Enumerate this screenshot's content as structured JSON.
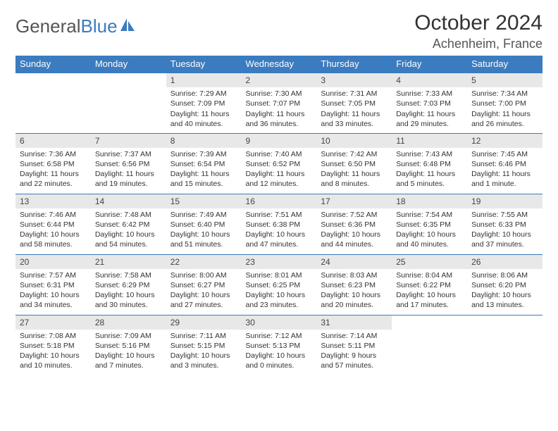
{
  "logo": {
    "part1": "General",
    "part2": "Blue"
  },
  "title": "October 2024",
  "location": "Achenheim, France",
  "colors": {
    "header_bg": "#3b7bbf",
    "header_text": "#ffffff",
    "daynum_bg": "#e8e8e8",
    "border": "#3b7bbf",
    "text": "#333333",
    "background": "#ffffff"
  },
  "fonts": {
    "title_size": 30,
    "location_size": 18,
    "dayheader_size": 13,
    "cell_size": 10.5
  },
  "day_headers": [
    "Sunday",
    "Monday",
    "Tuesday",
    "Wednesday",
    "Thursday",
    "Friday",
    "Saturday"
  ],
  "weeks": [
    [
      {
        "n": "",
        "sr": "",
        "ss": "",
        "dl": ""
      },
      {
        "n": "",
        "sr": "",
        "ss": "",
        "dl": ""
      },
      {
        "n": "1",
        "sr": "Sunrise: 7:29 AM",
        "ss": "Sunset: 7:09 PM",
        "dl": "Daylight: 11 hours and 40 minutes."
      },
      {
        "n": "2",
        "sr": "Sunrise: 7:30 AM",
        "ss": "Sunset: 7:07 PM",
        "dl": "Daylight: 11 hours and 36 minutes."
      },
      {
        "n": "3",
        "sr": "Sunrise: 7:31 AM",
        "ss": "Sunset: 7:05 PM",
        "dl": "Daylight: 11 hours and 33 minutes."
      },
      {
        "n": "4",
        "sr": "Sunrise: 7:33 AM",
        "ss": "Sunset: 7:03 PM",
        "dl": "Daylight: 11 hours and 29 minutes."
      },
      {
        "n": "5",
        "sr": "Sunrise: 7:34 AM",
        "ss": "Sunset: 7:00 PM",
        "dl": "Daylight: 11 hours and 26 minutes."
      }
    ],
    [
      {
        "n": "6",
        "sr": "Sunrise: 7:36 AM",
        "ss": "Sunset: 6:58 PM",
        "dl": "Daylight: 11 hours and 22 minutes."
      },
      {
        "n": "7",
        "sr": "Sunrise: 7:37 AM",
        "ss": "Sunset: 6:56 PM",
        "dl": "Daylight: 11 hours and 19 minutes."
      },
      {
        "n": "8",
        "sr": "Sunrise: 7:39 AM",
        "ss": "Sunset: 6:54 PM",
        "dl": "Daylight: 11 hours and 15 minutes."
      },
      {
        "n": "9",
        "sr": "Sunrise: 7:40 AM",
        "ss": "Sunset: 6:52 PM",
        "dl": "Daylight: 11 hours and 12 minutes."
      },
      {
        "n": "10",
        "sr": "Sunrise: 7:42 AM",
        "ss": "Sunset: 6:50 PM",
        "dl": "Daylight: 11 hours and 8 minutes."
      },
      {
        "n": "11",
        "sr": "Sunrise: 7:43 AM",
        "ss": "Sunset: 6:48 PM",
        "dl": "Daylight: 11 hours and 5 minutes."
      },
      {
        "n": "12",
        "sr": "Sunrise: 7:45 AM",
        "ss": "Sunset: 6:46 PM",
        "dl": "Daylight: 11 hours and 1 minute."
      }
    ],
    [
      {
        "n": "13",
        "sr": "Sunrise: 7:46 AM",
        "ss": "Sunset: 6:44 PM",
        "dl": "Daylight: 10 hours and 58 minutes."
      },
      {
        "n": "14",
        "sr": "Sunrise: 7:48 AM",
        "ss": "Sunset: 6:42 PM",
        "dl": "Daylight: 10 hours and 54 minutes."
      },
      {
        "n": "15",
        "sr": "Sunrise: 7:49 AM",
        "ss": "Sunset: 6:40 PM",
        "dl": "Daylight: 10 hours and 51 minutes."
      },
      {
        "n": "16",
        "sr": "Sunrise: 7:51 AM",
        "ss": "Sunset: 6:38 PM",
        "dl": "Daylight: 10 hours and 47 minutes."
      },
      {
        "n": "17",
        "sr": "Sunrise: 7:52 AM",
        "ss": "Sunset: 6:36 PM",
        "dl": "Daylight: 10 hours and 44 minutes."
      },
      {
        "n": "18",
        "sr": "Sunrise: 7:54 AM",
        "ss": "Sunset: 6:35 PM",
        "dl": "Daylight: 10 hours and 40 minutes."
      },
      {
        "n": "19",
        "sr": "Sunrise: 7:55 AM",
        "ss": "Sunset: 6:33 PM",
        "dl": "Daylight: 10 hours and 37 minutes."
      }
    ],
    [
      {
        "n": "20",
        "sr": "Sunrise: 7:57 AM",
        "ss": "Sunset: 6:31 PM",
        "dl": "Daylight: 10 hours and 34 minutes."
      },
      {
        "n": "21",
        "sr": "Sunrise: 7:58 AM",
        "ss": "Sunset: 6:29 PM",
        "dl": "Daylight: 10 hours and 30 minutes."
      },
      {
        "n": "22",
        "sr": "Sunrise: 8:00 AM",
        "ss": "Sunset: 6:27 PM",
        "dl": "Daylight: 10 hours and 27 minutes."
      },
      {
        "n": "23",
        "sr": "Sunrise: 8:01 AM",
        "ss": "Sunset: 6:25 PM",
        "dl": "Daylight: 10 hours and 23 minutes."
      },
      {
        "n": "24",
        "sr": "Sunrise: 8:03 AM",
        "ss": "Sunset: 6:23 PM",
        "dl": "Daylight: 10 hours and 20 minutes."
      },
      {
        "n": "25",
        "sr": "Sunrise: 8:04 AM",
        "ss": "Sunset: 6:22 PM",
        "dl": "Daylight: 10 hours and 17 minutes."
      },
      {
        "n": "26",
        "sr": "Sunrise: 8:06 AM",
        "ss": "Sunset: 6:20 PM",
        "dl": "Daylight: 10 hours and 13 minutes."
      }
    ],
    [
      {
        "n": "27",
        "sr": "Sunrise: 7:08 AM",
        "ss": "Sunset: 5:18 PM",
        "dl": "Daylight: 10 hours and 10 minutes."
      },
      {
        "n": "28",
        "sr": "Sunrise: 7:09 AM",
        "ss": "Sunset: 5:16 PM",
        "dl": "Daylight: 10 hours and 7 minutes."
      },
      {
        "n": "29",
        "sr": "Sunrise: 7:11 AM",
        "ss": "Sunset: 5:15 PM",
        "dl": "Daylight: 10 hours and 3 minutes."
      },
      {
        "n": "30",
        "sr": "Sunrise: 7:12 AM",
        "ss": "Sunset: 5:13 PM",
        "dl": "Daylight: 10 hours and 0 minutes."
      },
      {
        "n": "31",
        "sr": "Sunrise: 7:14 AM",
        "ss": "Sunset: 5:11 PM",
        "dl": "Daylight: 9 hours and 57 minutes."
      },
      {
        "n": "",
        "sr": "",
        "ss": "",
        "dl": ""
      },
      {
        "n": "",
        "sr": "",
        "ss": "",
        "dl": ""
      }
    ]
  ]
}
